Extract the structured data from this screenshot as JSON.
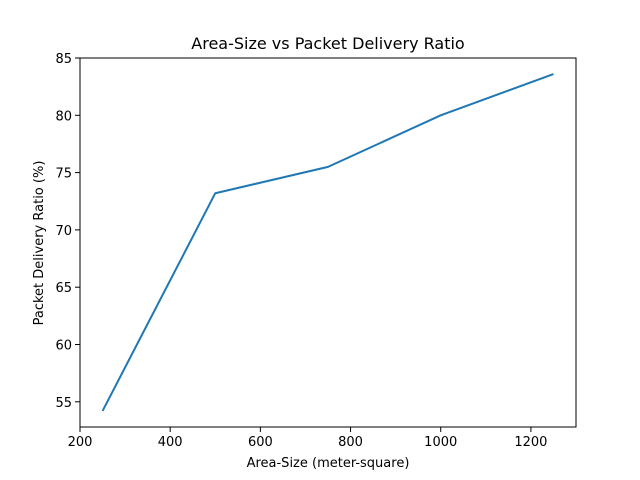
{
  "chart_data": {
    "type": "line",
    "title": "Area-Size vs Packet Delivery Ratio",
    "xlabel": "Area-Size (meter-square)",
    "ylabel": "Packet Delivery Ratio (%)",
    "x": [
      250,
      500,
      750,
      1000,
      1250
    ],
    "series": [
      {
        "values": [
          54.2,
          73.2,
          75.5,
          80.0,
          83.6
        ],
        "color": "#1f77b4"
      }
    ],
    "xlim": [
      200,
      1300
    ],
    "ylim": [
      52.8,
      85.0
    ],
    "xticks": [
      200,
      400,
      600,
      800,
      1000,
      1200
    ],
    "yticks": [
      55,
      60,
      65,
      70,
      75,
      80,
      85
    ],
    "grid": false,
    "legend": "none"
  }
}
